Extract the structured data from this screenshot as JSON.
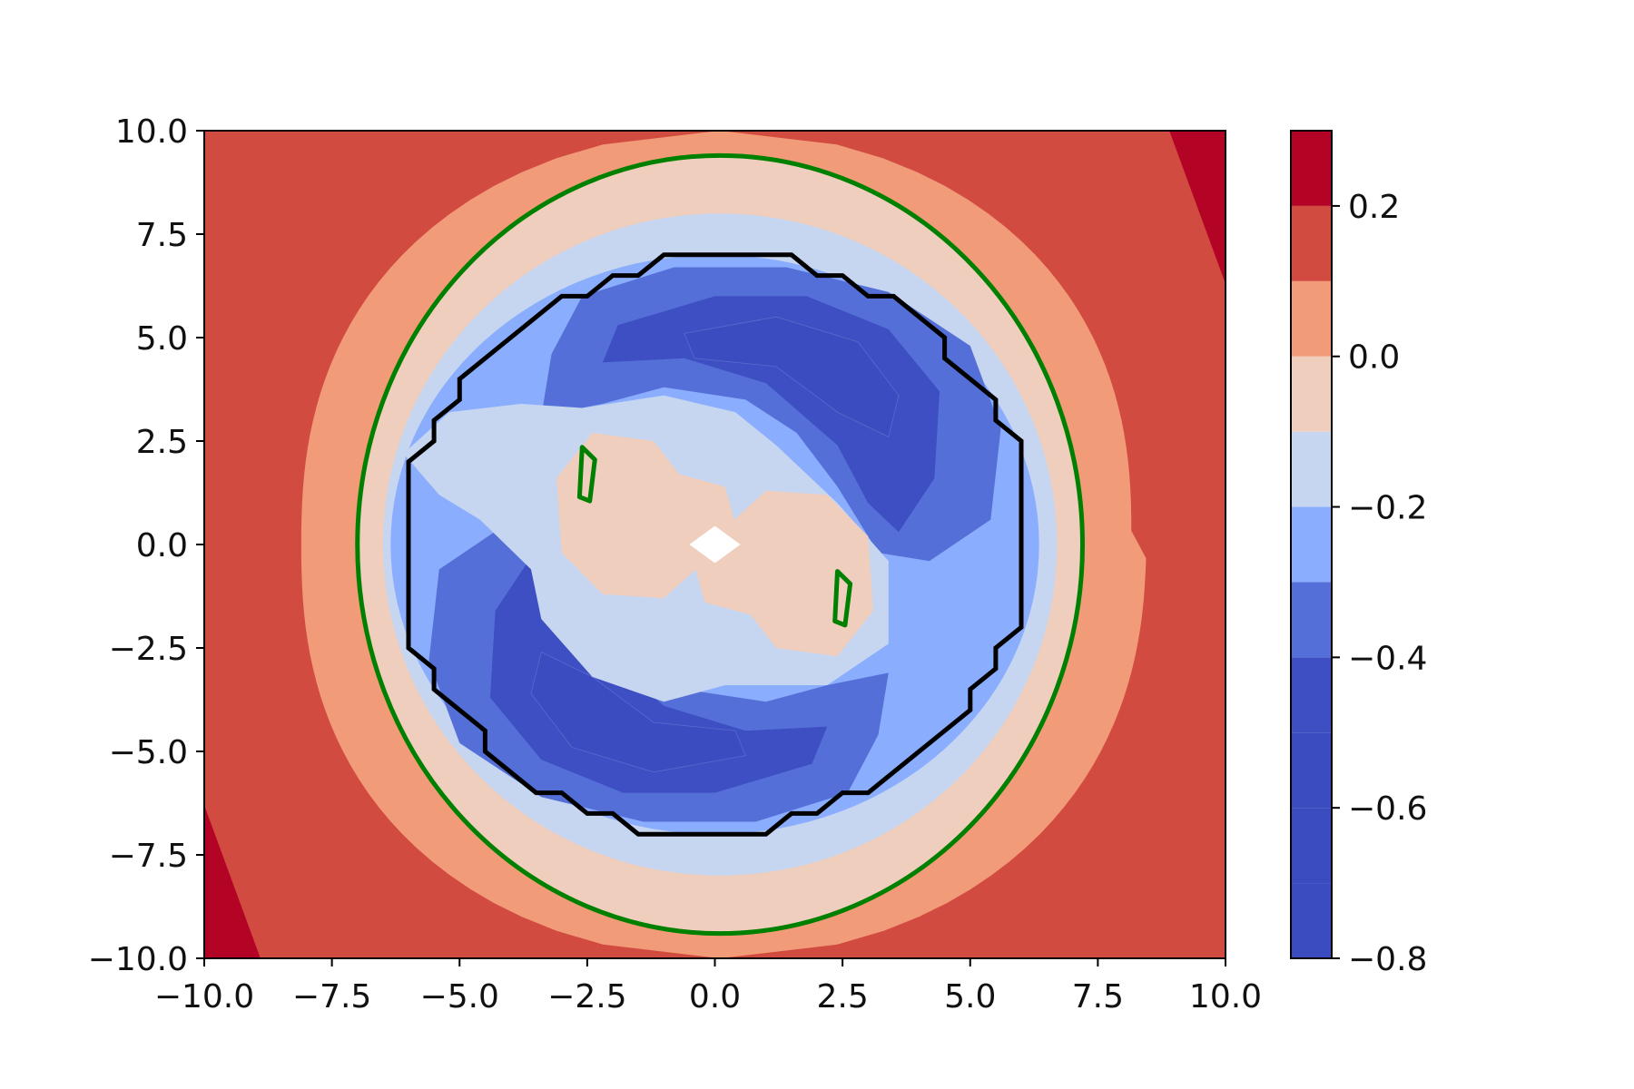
{
  "chart_data": {
    "type": "heatmap",
    "subtype": "filled-contour",
    "title": "",
    "xlabel": "",
    "ylabel": "",
    "xlim": [
      -10,
      10
    ],
    "ylim": [
      -10,
      10
    ],
    "grid": false,
    "x_ticks": [
      -10.0,
      -7.5,
      -5.0,
      -2.5,
      0.0,
      2.5,
      5.0,
      7.5,
      10.0
    ],
    "x_tick_labels": [
      "−10.0",
      "−7.5",
      "−5.0",
      "−2.5",
      "0.0",
      "2.5",
      "5.0",
      "7.5",
      "10.0"
    ],
    "y_ticks": [
      -10.0,
      -7.5,
      -5.0,
      -2.5,
      0.0,
      2.5,
      5.0,
      7.5,
      10.0
    ],
    "y_tick_labels": [
      "−10.0",
      "−7.5",
      "−5.0",
      "−2.5",
      "0.0",
      "2.5",
      "5.0",
      "7.5",
      "10.0"
    ],
    "colormap": "coolwarm",
    "colorbar": {
      "range": [
        -0.8,
        0.3
      ],
      "levels": [
        -0.8,
        -0.7,
        -0.6,
        -0.5,
        -0.4,
        -0.3,
        -0.2,
        -0.1,
        0.0,
        0.1,
        0.2,
        0.3
      ],
      "colors": [
        "#3b4cc0",
        "#3b4cc0",
        "#3b4cc0",
        "#3d4fc2",
        "#5470d8",
        "#8badfd",
        "#c6d6f0",
        "#efcebd",
        "#f29b79",
        "#d24b40",
        "#b40426"
      ],
      "ticks": [
        0.2,
        0.0,
        -0.2,
        -0.4,
        -0.6,
        -0.8
      ],
      "tick_labels": [
        "0.2",
        "0.0",
        "−0.2",
        "−0.4",
        "−0.6",
        "−0.8"
      ]
    },
    "field": {
      "description": "radially symmetric ring with a two-lobed negative swirl",
      "outer_level_boundaries": [
        {
          "level": 0.1,
          "shape": "lens",
          "center": [
            0.1,
            0.0
          ],
          "half_width_at_center": 8.2,
          "half_height": 10.0
        },
        {
          "level": 0.0,
          "shape": "ellipse",
          "center": [
            0.1,
            0.0
          ],
          "rx": 7.1,
          "ry": 9.4
        },
        {
          "level": -0.1,
          "shape": "ellipse",
          "center": [
            0.1,
            0.0
          ],
          "rx": 6.6,
          "ry": 8.0
        }
      ],
      "corner_patches_above_0_2": [
        {
          "corner": "top-right",
          "points": [
            [
              8.9,
              10.0
            ],
            [
              10.0,
              10.0
            ],
            [
              10.0,
              6.3
            ]
          ]
        },
        {
          "corner": "bottom-left",
          "points": [
            [
              -10.0,
              -6.3
            ],
            [
              -10.0,
              -10.0
            ],
            [
              -8.9,
              -10.0
            ]
          ]
        }
      ],
      "lobes": [
        {
          "orientation": "upper-right",
          "band": -0.3,
          "center": [
            2.3,
            3.6
          ]
        },
        {
          "orientation": "lower-left",
          "band": -0.3,
          "center": [
            -2.3,
            -3.6
          ]
        }
      ],
      "center_band": -0.1,
      "blank_cell_at": [
        0.0,
        0.0
      ]
    },
    "overlay_lines": [
      {
        "color": "#008000",
        "shape": "closed-curve",
        "center": [
          0.1,
          0.0
        ],
        "rx": 7.1,
        "ry": 9.4
      },
      {
        "color": "#000000",
        "shape": "stepped-octagon",
        "x_extent": [
          -6.0,
          6.0
        ],
        "y_extent": [
          -7.0,
          7.0
        ]
      },
      {
        "color": "#008000",
        "shape": "small-loop",
        "center": [
          -2.5,
          1.5
        ]
      },
      {
        "color": "#008000",
        "shape": "small-loop",
        "center": [
          2.5,
          -1.5
        ]
      }
    ]
  }
}
